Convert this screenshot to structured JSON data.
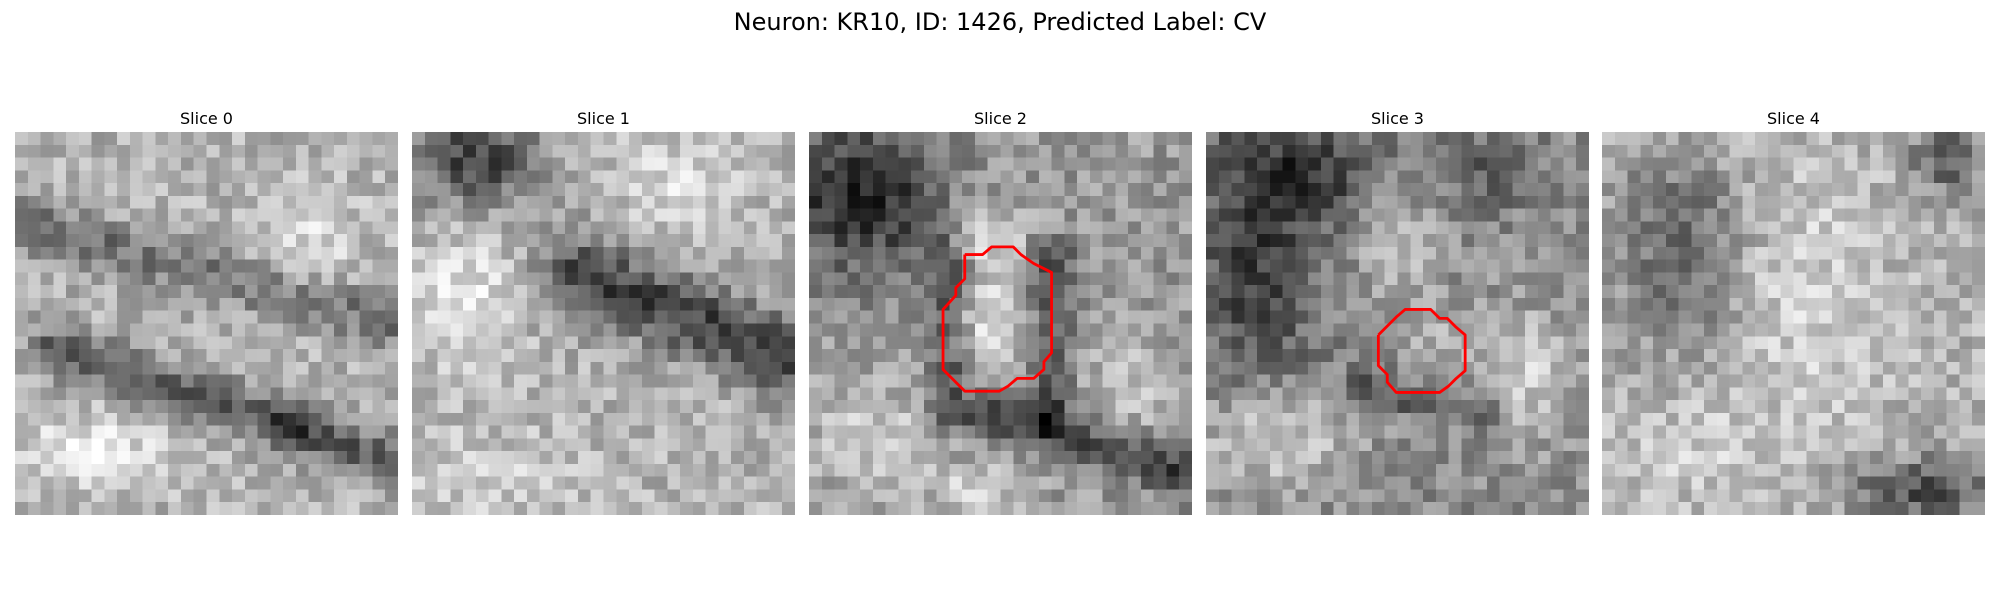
{
  "figure": {
    "title": "Neuron: KR10, ID: 1426, Predicted Label: CV"
  },
  "panels": [
    {
      "label": "Slice 0",
      "mask": false
    },
    {
      "label": "Slice 1",
      "mask": false
    },
    {
      "label": "Slice 2",
      "mask": true
    },
    {
      "label": "Slice 3",
      "mask": true
    },
    {
      "label": "Slice 4",
      "mask": false
    }
  ],
  "colors": {
    "contour": "#ff0000",
    "colormap": "gray"
  }
}
